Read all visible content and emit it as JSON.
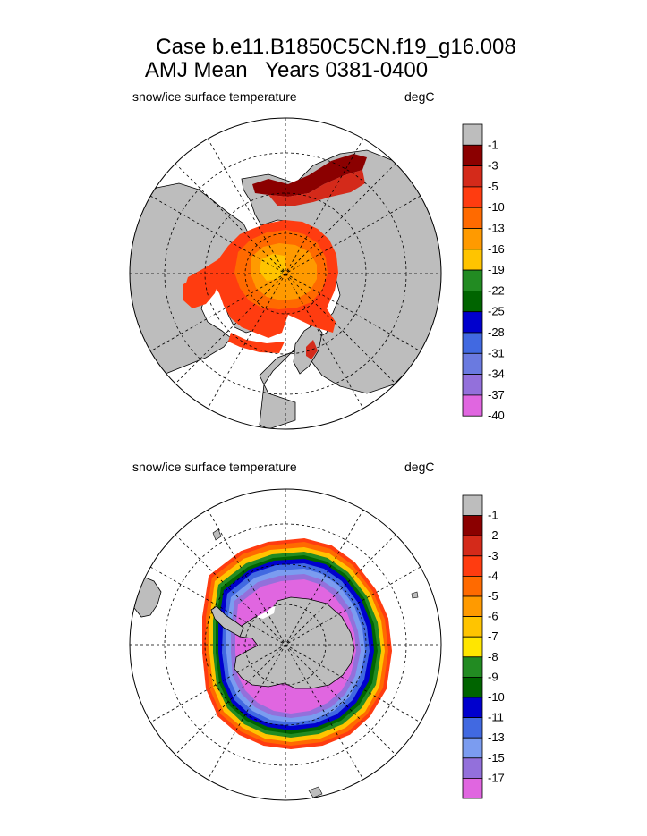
{
  "title": {
    "case_line": "Case b.e11.B1850C5CN.f19_g16.008",
    "period_line": "AMJ Mean   Years 0381-0400"
  },
  "panels": [
    {
      "hemisphere": "north",
      "variable_label": "snow/ice surface temperature",
      "units_label": "degC",
      "colorbar": {
        "colors": [
          "#bdbdbd",
          "#8b0000",
          "#d42a1a",
          "#ff3c10",
          "#ff6a00",
          "#ff9a00",
          "#ffc400",
          "#228b22",
          "#006400",
          "#0000cd",
          "#4169e1",
          "#6a7ae0",
          "#9370db",
          "#e066e0"
        ],
        "labels": [
          "-1",
          "-3",
          "-5",
          "-10",
          "-13",
          "-16",
          "-19",
          "-22",
          "-25",
          "-28",
          "-31",
          "-34",
          "-37",
          "-40"
        ]
      }
    },
    {
      "hemisphere": "south",
      "variable_label": "snow/ice surface temperature",
      "units_label": "degC",
      "colorbar": {
        "colors": [
          "#bdbdbd",
          "#8b0000",
          "#d42a1a",
          "#ff3c10",
          "#ff6a00",
          "#ff9a00",
          "#ffc400",
          "#ffe600",
          "#228b22",
          "#006400",
          "#0000cd",
          "#4169e1",
          "#7b9cf0",
          "#9370db",
          "#e066e0"
        ],
        "labels": [
          "-1",
          "-2",
          "-3",
          "-4",
          "-5",
          "-6",
          "-7",
          "-8",
          "-9",
          "-10",
          "-11",
          "-13",
          "-15",
          "-17"
        ]
      }
    }
  ]
}
